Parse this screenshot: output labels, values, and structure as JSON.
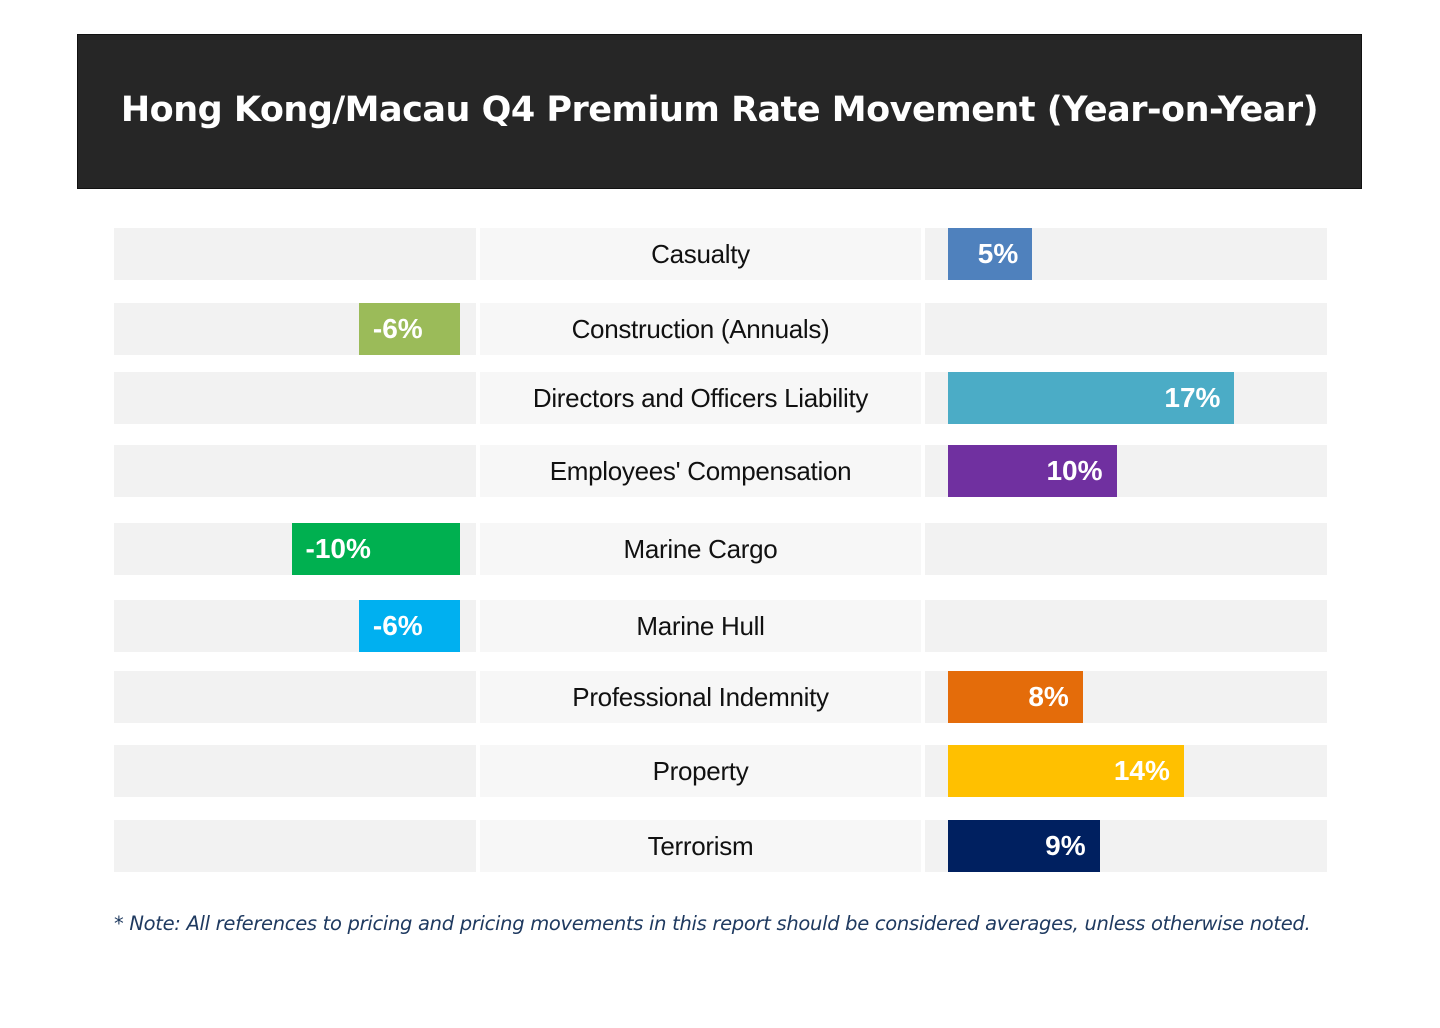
{
  "chart_data": {
    "type": "bar",
    "title": "Hong Kong/Macau Q4 Premium Rate Movement (Year-on-Year)",
    "categories": [
      "Casualty",
      "Construction (Annuals)",
      "Directors and Officers Liability",
      "Employees' Compensation",
      "Marine Cargo",
      "Marine Hull",
      "Professional Indemnity",
      "Property",
      "Terrorism"
    ],
    "values": [
      5,
      -6,
      17,
      10,
      -10,
      -6,
      8,
      14,
      9
    ],
    "value_labels": [
      "5%",
      "-6%",
      "17%",
      "10%",
      "-10%",
      "-6%",
      "8%",
      "14%",
      "9%"
    ],
    "colors": [
      "#4f81bd",
      "#9bbb59",
      "#4bacc6",
      "#7030a0",
      "#00b050",
      "#00b0f0",
      "#e46c0a",
      "#ffc000",
      "#002060"
    ],
    "value_unit": "%",
    "grid": false,
    "legend": "none"
  },
  "note": "* Note: All references to pricing and pricing movements in this report should be considered averages, unless otherwise noted."
}
